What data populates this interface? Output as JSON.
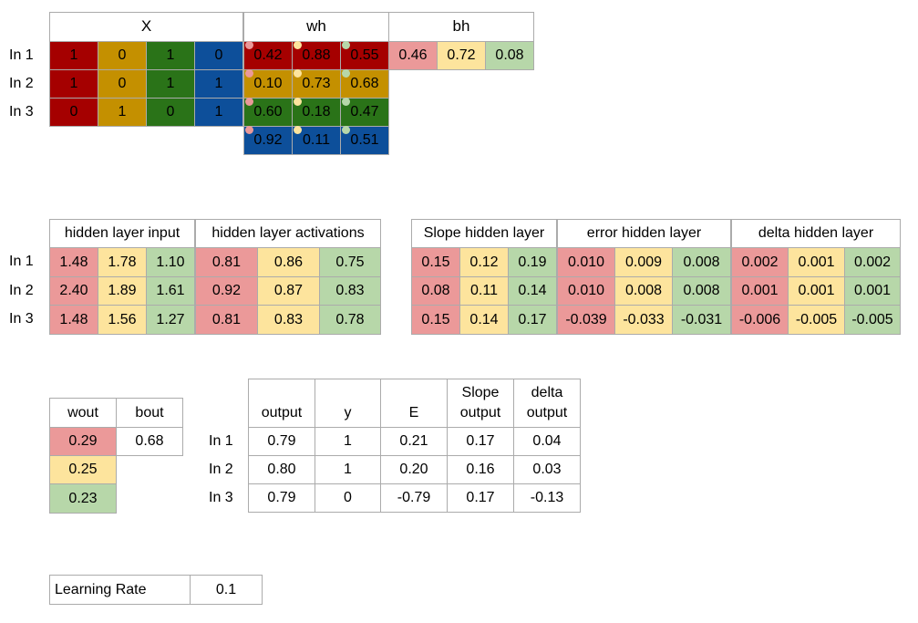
{
  "row_labels": [
    "In 1",
    "In 2",
    "In 3"
  ],
  "top": {
    "x_header": "X",
    "wh_header": "wh",
    "bh_header": "bh",
    "x": [
      [
        "1",
        "0",
        "1",
        "0"
      ],
      [
        "1",
        "0",
        "1",
        "1"
      ],
      [
        "0",
        "1",
        "0",
        "1"
      ]
    ],
    "wh": [
      [
        "0.42",
        "0.88",
        "0.55"
      ],
      [
        "0.10",
        "0.73",
        "0.68"
      ],
      [
        "0.60",
        "0.18",
        "0.47"
      ],
      [
        "0.92",
        "0.11",
        "0.51"
      ]
    ],
    "bh": [
      "0.46",
      "0.72",
      "0.08"
    ]
  },
  "hidden": {
    "input_header": "hidden layer input",
    "activations_header": "hidden layer activations",
    "input": [
      [
        "1.48",
        "1.78",
        "1.10"
      ],
      [
        "2.40",
        "1.89",
        "1.61"
      ],
      [
        "1.48",
        "1.56",
        "1.27"
      ]
    ],
    "activations": [
      [
        "0.81",
        "0.86",
        "0.75"
      ],
      [
        "0.92",
        "0.87",
        "0.83"
      ],
      [
        "0.81",
        "0.83",
        "0.78"
      ]
    ]
  },
  "slope": {
    "slope_header": "Slope hidden layer",
    "error_header": "error hidden layer",
    "delta_header": "delta hidden layer",
    "slope": [
      [
        "0.15",
        "0.12",
        "0.19"
      ],
      [
        "0.08",
        "0.11",
        "0.14"
      ],
      [
        "0.15",
        "0.14",
        "0.17"
      ]
    ],
    "error": [
      [
        "0.010",
        "0.009",
        "0.008"
      ],
      [
        "0.010",
        "0.008",
        "0.008"
      ],
      [
        "-0.039",
        "-0.033",
        "-0.031"
      ]
    ],
    "delta": [
      [
        "0.002",
        "0.001",
        "0.002"
      ],
      [
        "0.001",
        "0.001",
        "0.001"
      ],
      [
        "-0.006",
        "-0.005",
        "-0.005"
      ]
    ]
  },
  "wout_table": {
    "wout_header": "wout",
    "bout_header": "bout",
    "wout": [
      "0.29",
      "0.25",
      "0.23"
    ],
    "bout": "0.68"
  },
  "output_table": {
    "headers": [
      "output",
      "y",
      "E",
      "Slope\noutput",
      "delta\noutput"
    ],
    "rows": [
      [
        "0.79",
        "1",
        "0.21",
        "0.17",
        "0.04"
      ],
      [
        "0.80",
        "1",
        "0.20",
        "0.16",
        "0.03"
      ],
      [
        "0.79",
        "0",
        "-0.79",
        "0.17",
        "-0.13"
      ]
    ]
  },
  "learning_rate": {
    "label": "Learning Rate",
    "value": "0.1"
  },
  "colors": {
    "dark": [
      "#a50000",
      "#c49000",
      "#2a7318",
      "#0d4f9a"
    ],
    "light": [
      "#eb9999",
      "#fde49d",
      "#b7d7a9"
    ]
  }
}
